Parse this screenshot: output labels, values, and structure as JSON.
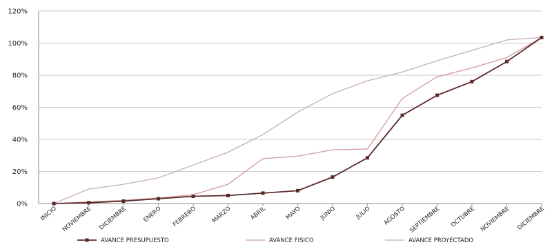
{
  "chart_data": {
    "type": "line",
    "categories": [
      "INICIO",
      "NOVIEMBRE",
      "DICIEMBRE",
      "ENERO",
      "FEBRERO",
      "MARZO",
      "ABRIL",
      "MAYO",
      "JUNIO",
      "JULIO",
      "AGOSTO",
      "SEPTIEMBRE",
      "OCTUBRE",
      "NOVIEMBRE",
      "DICIEMBRE"
    ],
    "y_ticks": [
      "0%",
      "20%",
      "40%",
      "60%",
      "80%",
      "100%",
      "120%"
    ],
    "ylim": [
      0,
      120
    ],
    "grid": true,
    "legend_position": "bottom",
    "series": [
      {
        "name": "AVANCE PRESUPUESTO",
        "color": "#5a2a2a",
        "marker": "square",
        "values": [
          0,
          0.5,
          1.5,
          3,
          4.5,
          5,
          6.5,
          8,
          16.5,
          28.5,
          55,
          67.5,
          76,
          88.5,
          103.5
        ]
      },
      {
        "name": "AVANCE FISICO",
        "color": "#d09a9a",
        "marker": "none",
        "values": [
          0,
          1,
          2,
          3.5,
          5.5,
          12,
          28,
          29.5,
          33.5,
          34,
          65.5,
          79,
          84.5,
          91,
          103.5
        ]
      },
      {
        "name": "AVANCE PROYECTADO",
        "color": "#c4aac4",
        "marker": "none",
        "values": [
          0,
          9,
          12,
          16,
          24,
          32,
          43,
          57,
          68.5,
          76.5,
          82,
          89,
          95.5,
          102,
          103.5
        ]
      }
    ]
  }
}
